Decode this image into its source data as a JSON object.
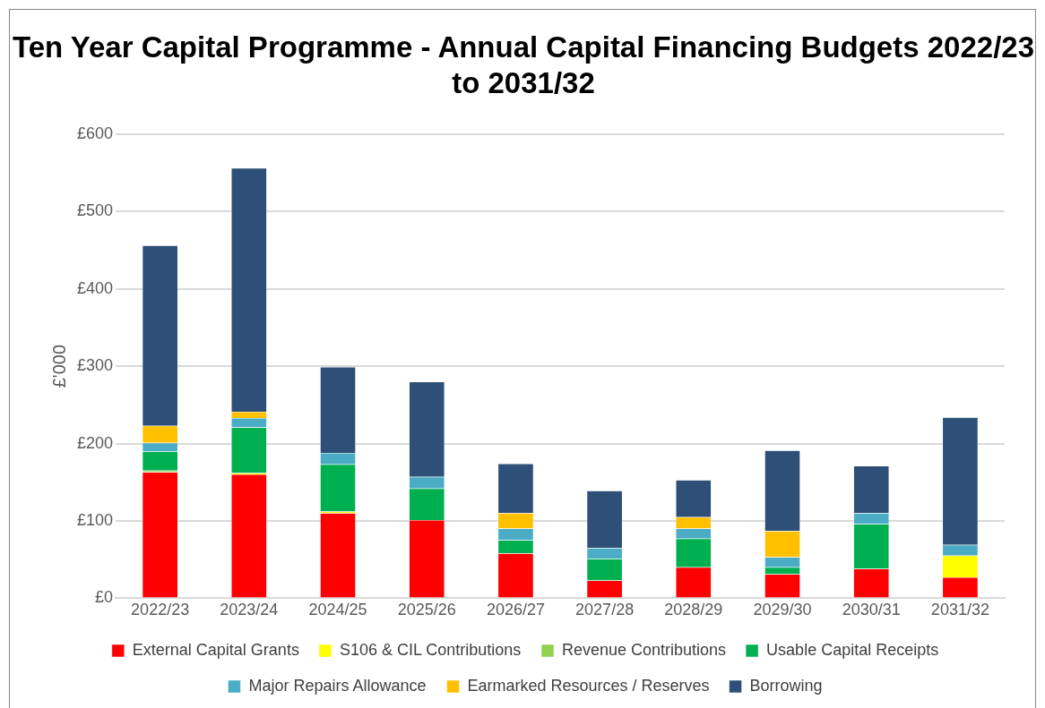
{
  "chart_data": {
    "type": "bar",
    "title": "Ten Year Capital Programme - Annual Capital Financing Budgets 2022/23 to 2031/32",
    "ylabel": "£'000",
    "stacked": true,
    "grid": "y",
    "legend": "bottom",
    "categories": [
      "2022/23",
      "2023/24",
      "2024/25",
      "2025/26",
      "2026/27",
      "2027/28",
      "2028/29",
      "2029/30",
      "2030/31",
      "2031/32"
    ],
    "ylim": [
      0,
      600
    ],
    "yticks": [
      {
        "value": 0,
        "label": "£0"
      },
      {
        "value": 100,
        "label": "£100"
      },
      {
        "value": 200,
        "label": "£200"
      },
      {
        "value": 300,
        "label": "£300"
      },
      {
        "value": 400,
        "label": "£400"
      },
      {
        "value": 500,
        "label": "£500"
      },
      {
        "value": 600,
        "label": "£600"
      }
    ],
    "series": [
      {
        "name": "External Capital Grants",
        "color": "#ff0000",
        "values": [
          163,
          160,
          110,
          101,
          58,
          23,
          40,
          31,
          38,
          27
        ]
      },
      {
        "name": "S106 & CIL Contributions",
        "color": "#ffff00",
        "values": [
          0,
          2,
          2,
          0,
          0,
          0,
          0,
          0,
          0,
          28
        ]
      },
      {
        "name": "Revenue Contributions",
        "color": "#92d050",
        "values": [
          2,
          null,
          0,
          null,
          0,
          0,
          0,
          0,
          0,
          0
        ]
      },
      {
        "name": "Usable Capital Receipts",
        "color": "#00b050",
        "values": [
          25,
          59,
          61,
          41,
          17,
          28,
          37,
          9,
          58,
          0
        ]
      },
      {
        "name": "Major Repairs Allowance",
        "color": "#4bacc6",
        "values": [
          11,
          12,
          15,
          15,
          15,
          14,
          13,
          13,
          14,
          14
        ]
      },
      {
        "name": "Earmarked Resources / Reserves",
        "color": "#ffc000",
        "values": [
          22,
          8,
          0,
          0,
          20,
          0,
          15,
          34,
          0,
          0
        ]
      },
      {
        "name": "Borrowing",
        "color": "#2e5078",
        "values": [
          233,
          315,
          111,
          123,
          64,
          74,
          48,
          104,
          61,
          165
        ]
      }
    ]
  }
}
